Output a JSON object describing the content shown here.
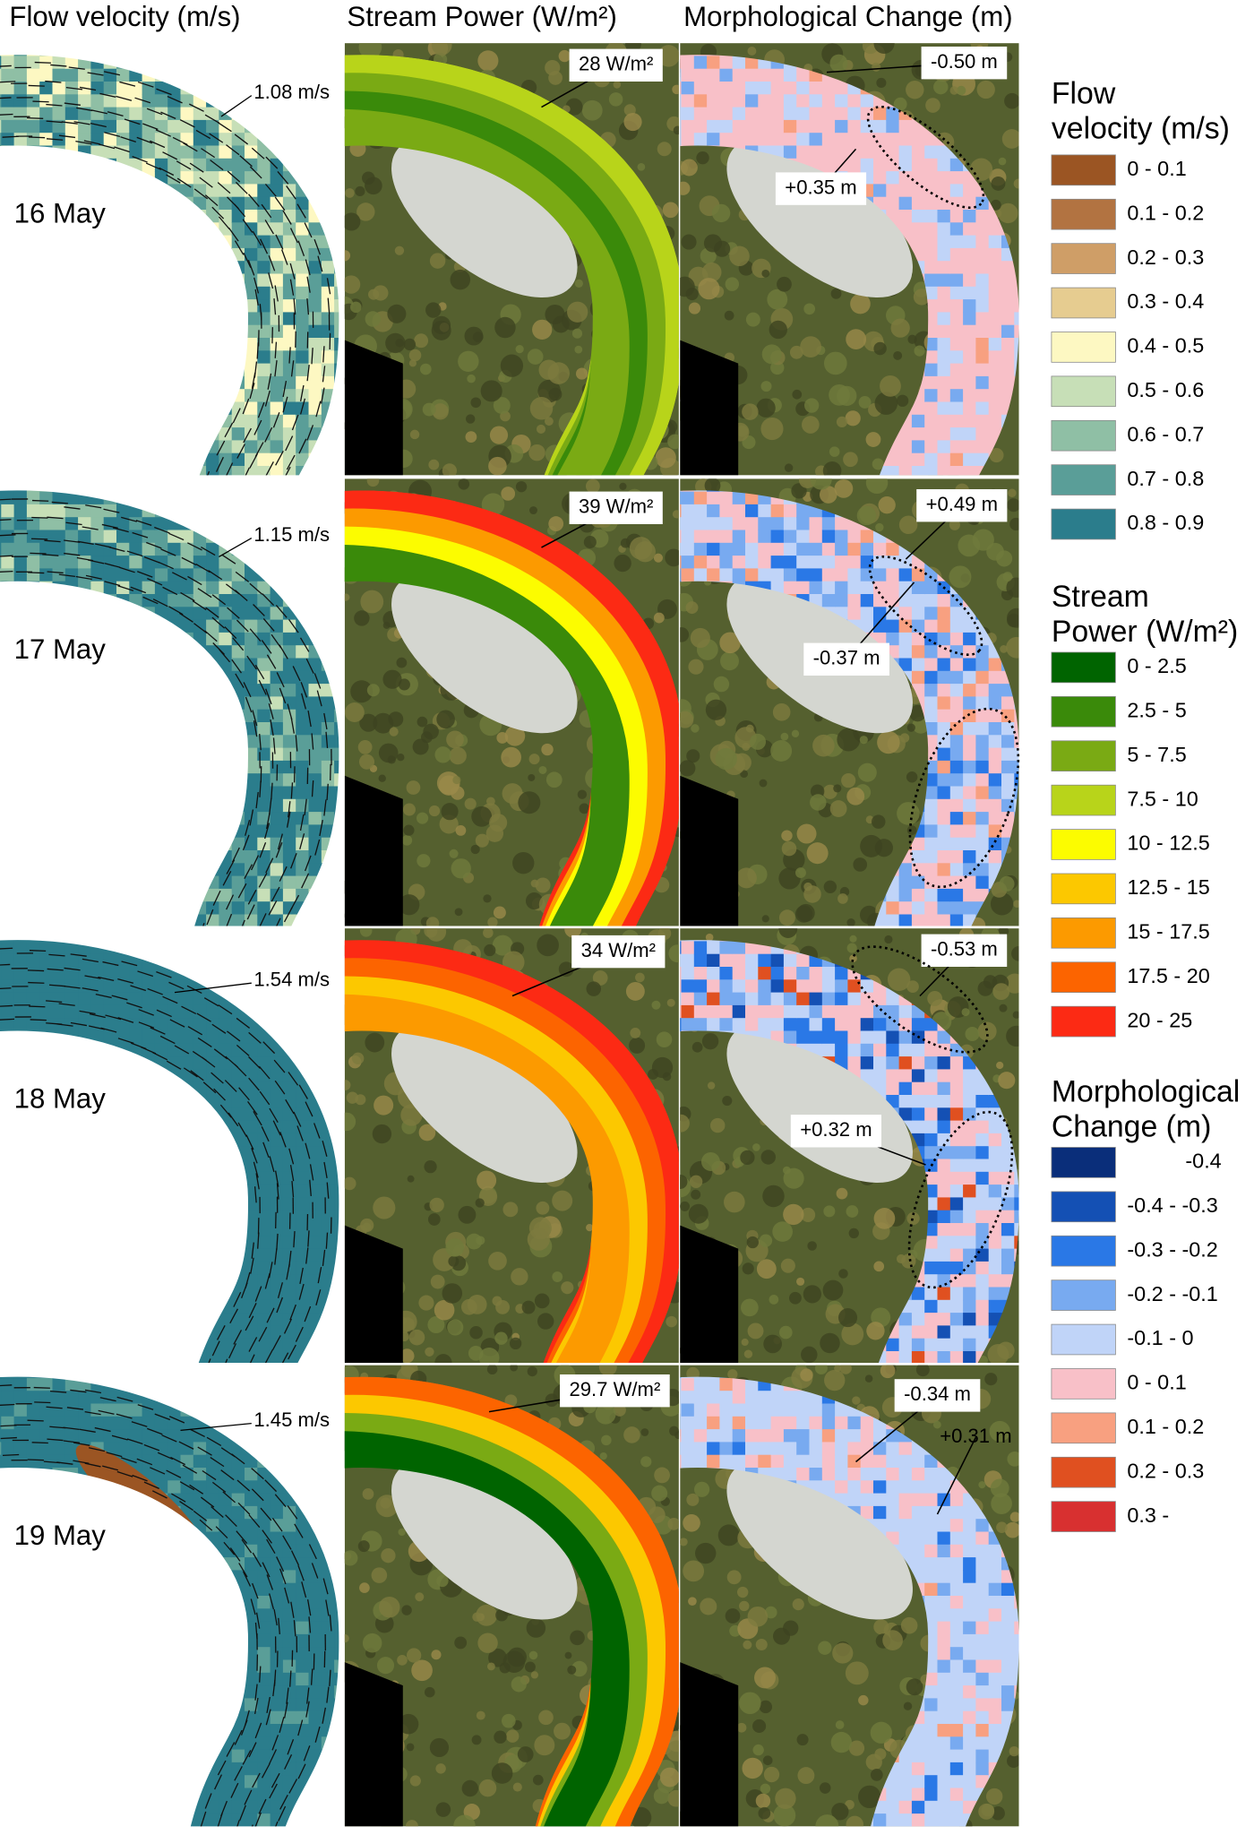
{
  "columns": [
    "Flow velocity (m/s)",
    "Stream Power (W/m²)",
    "Morphological Change (m)"
  ],
  "rows": [
    {
      "date": "16 May",
      "velocity": "1.08 m/s",
      "stream_power": "28 W/m²",
      "morph": [
        "-0.50 m",
        "+0.35 m"
      ]
    },
    {
      "date": "17 May",
      "velocity": "1.15 m/s",
      "stream_power": "39 W/m²",
      "morph": [
        "+0.49 m",
        "-0.37 m"
      ]
    },
    {
      "date": "18 May",
      "velocity": "1.54 m/s",
      "stream_power": "34 W/m²",
      "morph": [
        "-0.53 m",
        "+0.32 m"
      ]
    },
    {
      "date": "19 May",
      "velocity": "1.45 m/s",
      "stream_power": "29.7 W/m²",
      "morph": [
        "-0.34 m",
        "+0.31 m"
      ]
    }
  ],
  "legends": [
    {
      "title_lines": [
        "Flow",
        "velocity (m/s)"
      ],
      "entries": [
        {
          "label": "0 - 0.1",
          "color": "#9b5523"
        },
        {
          "label": "0.1 - 0.2",
          "color": "#b27341"
        },
        {
          "label": "0.2 - 0.3",
          "color": "#cf9e67"
        },
        {
          "label": "0.3 - 0.4",
          "color": "#e6cc90"
        },
        {
          "label": "0.4 - 0.5",
          "color": "#fdf8c2"
        },
        {
          "label": "0.5 - 0.6",
          "color": "#c7dfb7"
        },
        {
          "label": "0.6 - 0.7",
          "color": "#8fbfa5"
        },
        {
          "label": "0.7 - 0.8",
          "color": "#5a9e98"
        },
        {
          "label": "0.8 - 0.9",
          "color": "#2b7d8c"
        }
      ]
    },
    {
      "title_lines": [
        "Stream",
        "Power (W/m²)"
      ],
      "entries": [
        {
          "label": "0 - 2.5",
          "color": "#006400"
        },
        {
          "label": "2.5 - 5",
          "color": "#3a8a0a"
        },
        {
          "label": "5 - 7.5",
          "color": "#7aaa14"
        },
        {
          "label": "7.5 - 10",
          "color": "#b8d41a"
        },
        {
          "label": "10 - 12.5",
          "color": "#fcfc00"
        },
        {
          "label": "12.5 - 15",
          "color": "#fcc800"
        },
        {
          "label": "15 - 17.5",
          "color": "#fc9a00"
        },
        {
          "label": "17.5 - 20",
          "color": "#fc6400"
        },
        {
          "label": "20 - 25",
          "color": "#fc2a14"
        }
      ]
    },
    {
      "title_lines": [
        "Morphological",
        "Change (m)"
      ],
      "entries": [
        {
          "label": "-0.4",
          "color": "#0a2e7a"
        },
        {
          "label": "-0.4 - -0.3",
          "color": "#1450b4"
        },
        {
          "label": "-0.3 - -0.2",
          "color": "#2a78e6"
        },
        {
          "label": "-0.2 - -0.1",
          "color": "#78aaf0"
        },
        {
          "label": "-0.1 - 0",
          "color": "#c0d4f8"
        },
        {
          "label": "0 - 0.1",
          "color": "#f8c0c8"
        },
        {
          "label": "0.1 - 0.2",
          "color": "#f8a080"
        },
        {
          "label": "0.2 - 0.3",
          "color": "#e05020"
        },
        {
          "label": "0.3 -",
          "color": "#d83030"
        }
      ]
    }
  ]
}
